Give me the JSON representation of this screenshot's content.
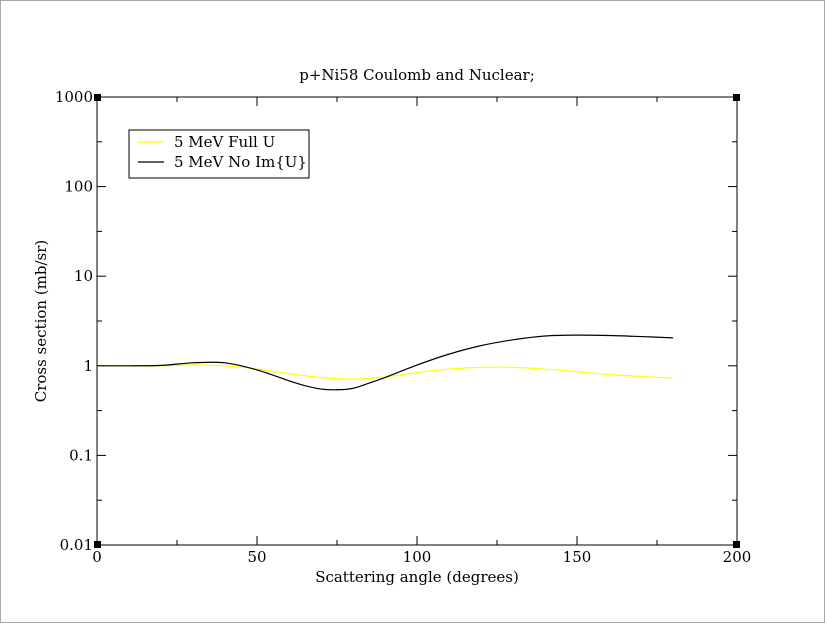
{
  "chart_data": {
    "type": "line",
    "title": "p+Ni58 Coulomb and Nuclear;",
    "xlabel": "Scattering angle (degrees)",
    "ylabel": "Cross section (mb/sr)",
    "xlim": [
      0,
      200
    ],
    "ylim": [
      0.01,
      1000
    ],
    "yscale": "log",
    "grid": false,
    "legend_position": "top-left",
    "x_ticks": [
      {
        "value": 0,
        "label": "0"
      },
      {
        "value": 50,
        "label": "50"
      },
      {
        "value": 100,
        "label": "100"
      },
      {
        "value": 150,
        "label": "150"
      },
      {
        "value": 200,
        "label": "200"
      }
    ],
    "y_ticks": [
      {
        "value": 0.01,
        "label": "0.01"
      },
      {
        "value": 0.1,
        "label": "0.1"
      },
      {
        "value": 1,
        "label": "1"
      },
      {
        "value": 10,
        "label": "10"
      },
      {
        "value": 100,
        "label": "100"
      },
      {
        "value": 1000,
        "label": "1000"
      }
    ],
    "series": [
      {
        "name": "5 MeV Full U",
        "color": "#ffff00",
        "x": [
          0,
          10,
          20,
          30,
          40,
          50,
          60,
          70,
          80,
          90,
          100,
          110,
          120,
          130,
          140,
          150,
          160,
          170,
          180
        ],
        "y": [
          1.0,
          1.0,
          1.0,
          1.02,
          1.0,
          0.92,
          0.82,
          0.74,
          0.71,
          0.75,
          0.84,
          0.92,
          0.96,
          0.96,
          0.92,
          0.86,
          0.8,
          0.76,
          0.73
        ]
      },
      {
        "name": "5 MeV No Im{U}",
        "color": "#000000",
        "x": [
          0,
          10,
          20,
          30,
          40,
          50,
          60,
          65,
          70,
          75,
          80,
          85,
          90,
          100,
          110,
          120,
          130,
          140,
          150,
          160,
          170,
          180
        ],
        "y": [
          1.0,
          1.0,
          1.01,
          1.08,
          1.08,
          0.9,
          0.68,
          0.6,
          0.55,
          0.54,
          0.56,
          0.64,
          0.74,
          1.02,
          1.35,
          1.68,
          1.95,
          2.15,
          2.2,
          2.18,
          2.12,
          2.05
        ]
      }
    ]
  }
}
